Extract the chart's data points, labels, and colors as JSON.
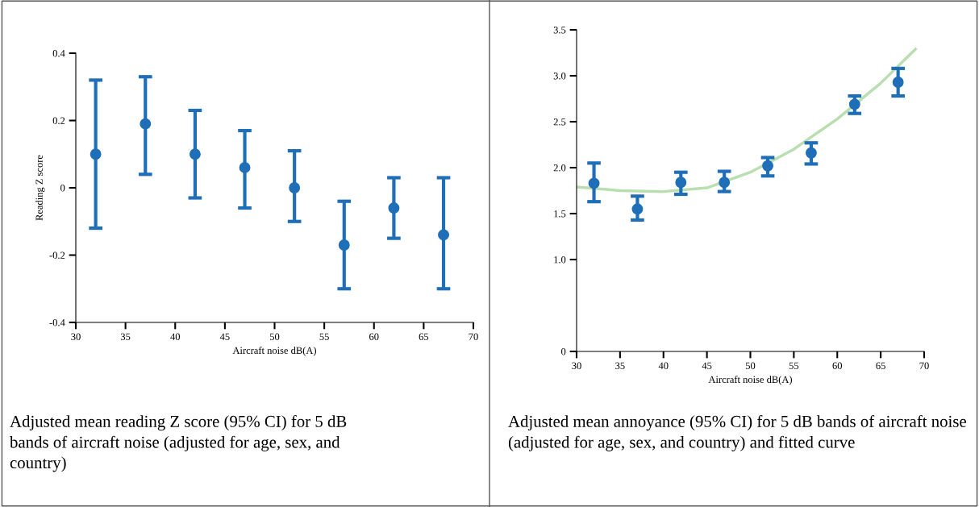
{
  "chart_data": [
    {
      "type": "scatter",
      "xlabel": "Aircraft noise dB(A)",
      "ylabel": "Reading Z score",
      "marker": "circle",
      "xlim": [
        30,
        70
      ],
      "xticks": [
        30,
        35,
        40,
        45,
        50,
        55,
        60,
        65,
        70
      ],
      "ylim": [
        -0.4,
        0.4
      ],
      "yticks": [
        -0.4,
        -0.2,
        0,
        0.2,
        0.4
      ],
      "annotations": [
        "Adjusted mean reading Z score (95% CI) for 5 dB bands of aircraft noise (adjusted for age, sex, and country)"
      ],
      "series": [
        {
          "color": "#1f6fb8",
          "x": [
            32,
            37,
            42,
            47,
            52,
            57,
            62,
            67
          ],
          "values": [
            0.1,
            0.19,
            0.1,
            0.06,
            0.0,
            -0.17,
            -0.06,
            -0.14
          ],
          "errors": [
            [
              -0.12,
              0.32
            ],
            [
              0.04,
              0.33
            ],
            [
              -0.03,
              0.23
            ],
            [
              -0.06,
              0.17
            ],
            [
              -0.1,
              0.11
            ],
            [
              -0.3,
              -0.04
            ],
            [
              -0.15,
              0.03
            ],
            [
              -0.3,
              0.03
            ]
          ]
        }
      ]
    },
    {
      "type": "scatter",
      "xlabel": "Aircraft noise dB(A)",
      "marker": "circle",
      "xlim": [
        30,
        70
      ],
      "xticks": [
        30,
        35,
        40,
        45,
        50,
        55,
        60,
        65,
        70
      ],
      "ylim": [
        0,
        3.5
      ],
      "yticks": [
        0,
        {
          "value": 1.0,
          "label": "1.0"
        },
        1.5,
        {
          "value": 2.0,
          "label": "2.0"
        },
        2.5,
        {
          "value": 3.0,
          "label": "3.0"
        },
        3.5
      ],
      "annotations": [
        "Adjusted mean annoyance (95% CI) for 5 dB bands of aircraft noise (adjusted for age, sex, and country) and fitted curve"
      ],
      "series": [
        {
          "type": "line",
          "marker": "none",
          "color": "#b9dfb0",
          "x": [
            30,
            35,
            40,
            45,
            50,
            55,
            60,
            65,
            69
          ],
          "values": [
            1.79,
            1.75,
            1.74,
            1.78,
            1.95,
            2.2,
            2.53,
            2.92,
            3.29
          ]
        },
        {
          "color": "#1f6fb8",
          "x": [
            32,
            37,
            42,
            47,
            52,
            57,
            62,
            67
          ],
          "values": [
            1.83,
            1.55,
            1.84,
            1.84,
            2.02,
            2.16,
            2.69,
            2.93
          ],
          "errors": [
            [
              1.63,
              2.05
            ],
            [
              1.43,
              1.69
            ],
            [
              1.71,
              1.95
            ],
            [
              1.74,
              1.96
            ],
            [
              1.91,
              2.11
            ],
            [
              2.04,
              2.27
            ],
            [
              2.59,
              2.78
            ],
            [
              2.78,
              3.08
            ]
          ]
        }
      ]
    }
  ]
}
